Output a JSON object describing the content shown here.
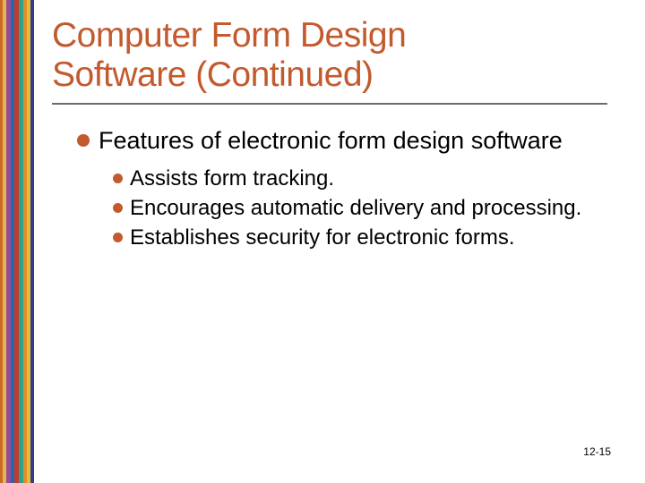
{
  "title": {
    "line1": "Computer Form Design",
    "line2": "Software (Continued)",
    "color": "#c35a2e",
    "fontsize": 39
  },
  "hr_color": "#6a6a6a",
  "bullet_color": "#c35a2e",
  "stripes": [
    {
      "color": "#c96a2d",
      "width": 3
    },
    {
      "color": "#e7b64a",
      "width": 4
    },
    {
      "color": "#934c9c",
      "width": 5
    },
    {
      "color": "#1f6aa8",
      "width": 4
    },
    {
      "color": "#c43a2e",
      "width": 5
    },
    {
      "color": "#2aa58a",
      "width": 5
    },
    {
      "color": "#e68a2e",
      "width": 4
    },
    {
      "color": "#e0c23a",
      "width": 4
    },
    {
      "color": "#3a3a8c",
      "width": 4
    }
  ],
  "main_bullet": "Features of electronic form design software",
  "sub_bullets": [
    "Assists form tracking.",
    "Encourages automatic delivery and processing.",
    "Establishes security for electronic forms."
  ],
  "page_number": "12-15",
  "body_fontsize_l1": 27,
  "body_fontsize_l2": 24,
  "background_color": "#ffffff"
}
